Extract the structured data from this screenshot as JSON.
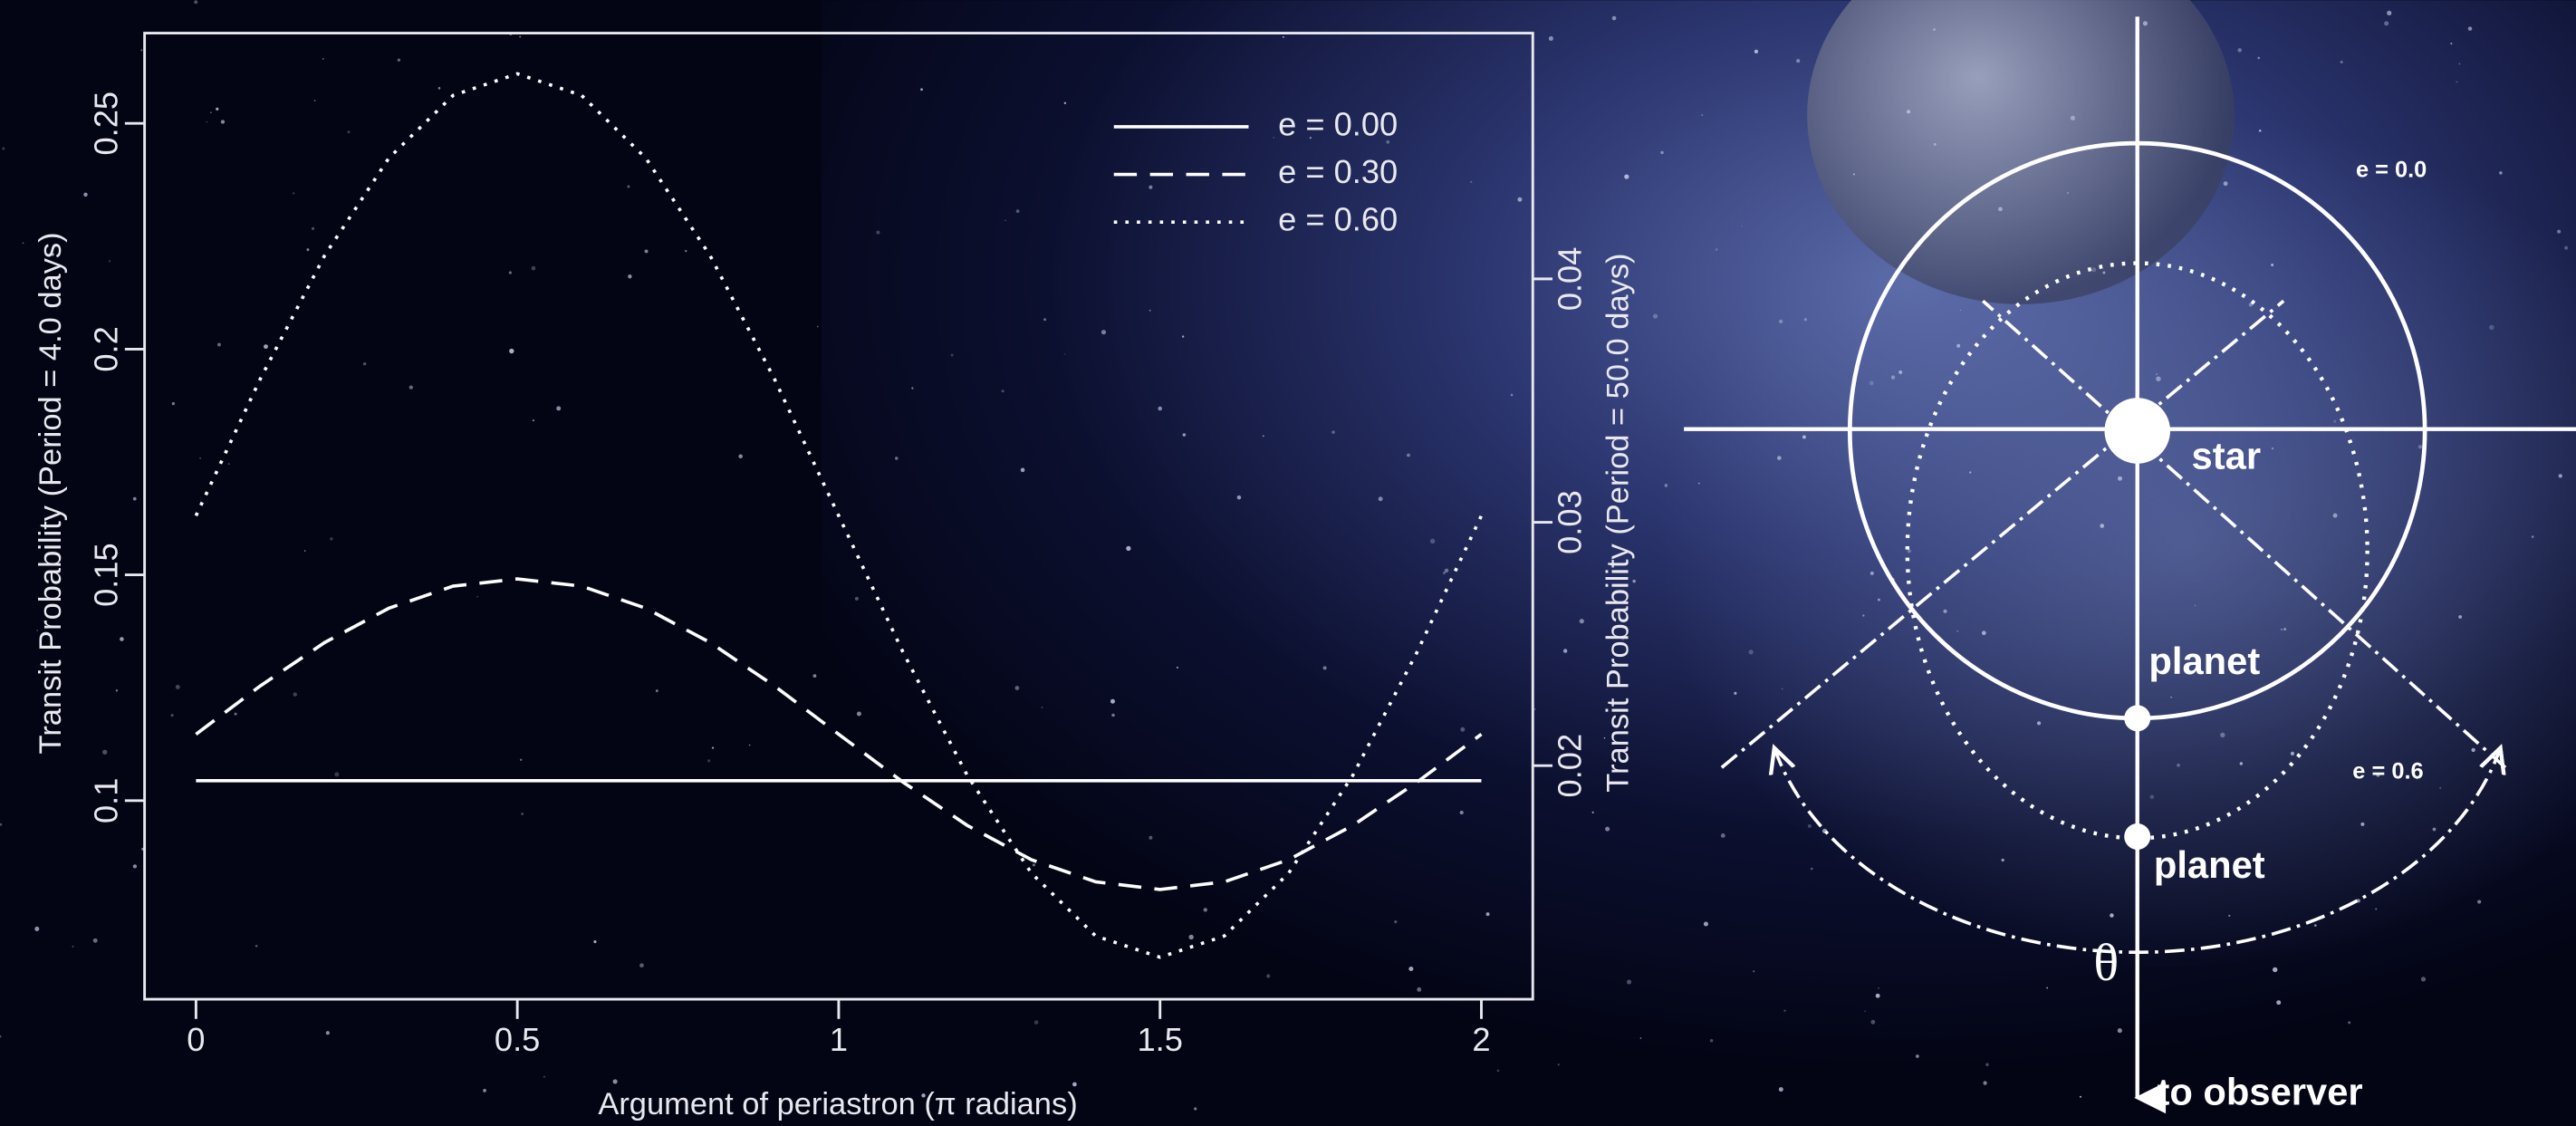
{
  "chart_data": {
    "type": "line",
    "xlabel": "Argument of periastron (π radians)",
    "ylabel": "Transit Probability (Period = 4.0 days)",
    "y2label": "Transit Probability (Period = 50.0 days)",
    "x": [
      0,
      0.1,
      0.2,
      0.3,
      0.4,
      0.5,
      0.6,
      0.7,
      0.8,
      0.9,
      1,
      1.1,
      1.2,
      1.3,
      1.4,
      1.5,
      1.6,
      1.7,
      1.8,
      1.9,
      2
    ],
    "series": [
      {
        "name": "e = 0.00",
        "color": "#ffffff",
        "linestyle": "solid",
        "values": [
          0.1044,
          0.1044,
          0.1044,
          0.1044,
          0.1044,
          0.1044,
          0.1044,
          0.1044,
          0.1044,
          0.1044,
          0.1044,
          0.1044,
          0.1044,
          0.1044,
          0.1044,
          0.1044,
          0.1044,
          0.1044,
          0.1044,
          0.1044,
          0.1044
        ]
      },
      {
        "name": "e = 0.30",
        "color": "#ffffff",
        "linestyle": "dashed",
        "values": [
          0.1147,
          0.1254,
          0.135,
          0.1426,
          0.1475,
          0.1491,
          0.1475,
          0.1426,
          0.135,
          0.1254,
          0.1147,
          0.1041,
          0.0945,
          0.0869,
          0.082,
          0.0803,
          0.082,
          0.0869,
          0.0945,
          0.1041,
          0.1147
        ]
      },
      {
        "name": "e = 0.60",
        "color": "#ffffff",
        "linestyle": "dotted",
        "values": [
          0.1631,
          0.1934,
          0.2207,
          0.2423,
          0.2562,
          0.261,
          0.2562,
          0.2423,
          0.2207,
          0.1934,
          0.1631,
          0.1329,
          0.1056,
          0.0839,
          0.07,
          0.0653,
          0.07,
          0.0839,
          0.1056,
          0.1329,
          0.1631
        ]
      }
    ],
    "xlim": [
      -0.08,
      2.08
    ],
    "xticks": [
      0,
      0.5,
      1,
      1.5,
      2
    ],
    "ylim": [
      0.056,
      0.27
    ],
    "yticks": [
      0.1,
      0.15,
      0.2,
      0.25
    ],
    "y2lim": [
      0.0104,
      0.0501
    ],
    "y2ticks": [
      0.02,
      0.03,
      0.04
    ],
    "grid": false,
    "legend": "top-right"
  },
  "diagram": {
    "orbit_circular": "e = 0.0",
    "orbit_eccentric": "e = 0.6",
    "star": "star",
    "planet_circular": "planet",
    "planet_eccentric": "planet",
    "angle": "θ",
    "direction": "to observer"
  }
}
